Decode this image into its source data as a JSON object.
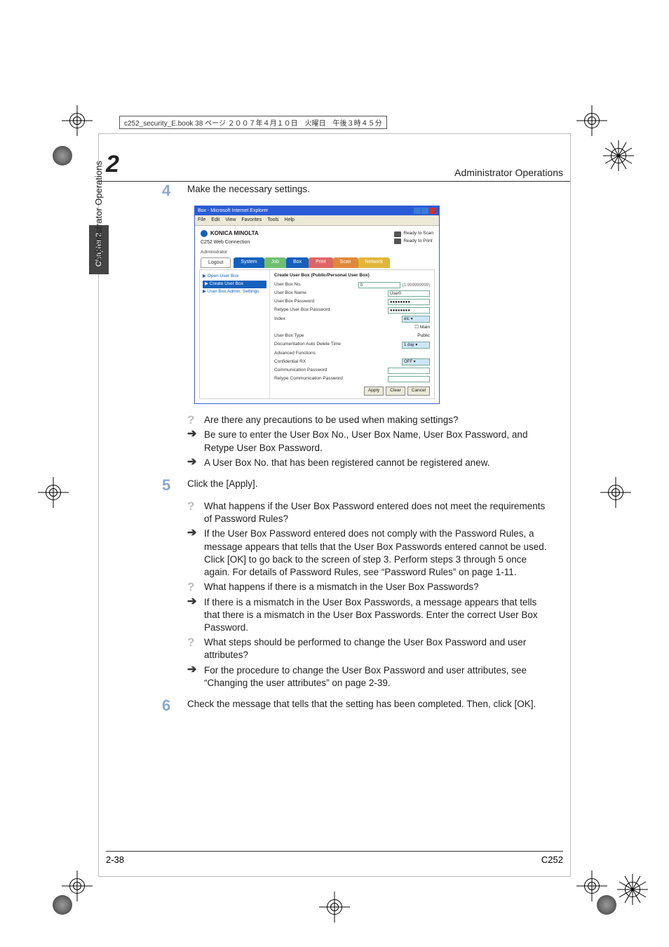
{
  "filetag": "c252_security_E.book  38 ページ  ２００７年４月１０日　火曜日　午後３時４５分",
  "header": {
    "chapter_num": "2",
    "title": "Administrator Operations"
  },
  "side": {
    "tab": "Chapter 2",
    "label": "Administrator Operations"
  },
  "steps": {
    "s4": {
      "num": "4",
      "text": "Make the necessary settings."
    },
    "s5": {
      "num": "5",
      "text": "Click the [Apply]."
    },
    "s6": {
      "num": "6",
      "text": "Check the message that tells that the setting has been completed. Then, click [OK]."
    }
  },
  "qa": {
    "q1": "Are there any precautions to be used when making settings?",
    "a1": "Be sure to enter the User Box No., User Box Name, User Box Password, and Retype User Box Password.",
    "a1b": "A User Box No. that has been registered cannot be registered anew.",
    "q2": "What happens if the User Box Password entered does not meet the requirements of Password Rules?",
    "a2": "If the User Box Password entered does not comply with the Password Rules, a message appears that tells that the User Box Passwords entered cannot be used. Click [OK] to go back to the screen of step 3. Perform steps 3 through 5 once again. For details of Password Rules, see “Password Rules” on page 1-11.",
    "q3": "What happens if there is a mismatch in the User Box Passwords?",
    "a3": "If there is a mismatch in the User Box Passwords, a message appears that tells that there is a mismatch in the User Box Passwords. Enter the correct User Box Password.",
    "q4": "What steps should be performed to change the User Box Password and user attributes?",
    "a4": "For the procedure to change the User Box Password and user attributes, see “Changing the user attributes” on page 2-39."
  },
  "screenshot": {
    "titlebar": "Box - Microsoft Internet Explorer",
    "menus": [
      "File",
      "Edit",
      "View",
      "Favorites",
      "Tools",
      "Help"
    ],
    "brand": "KONICA MINOLTA",
    "product": "C252 Web Connection",
    "ready_scan": "Ready to Scan",
    "ready_print": "Ready to Print",
    "admin": "Administrator",
    "tabs": {
      "logout": "Logout",
      "list": [
        {
          "label": "System",
          "color": "#1560bd"
        },
        {
          "label": "Job",
          "color": "#6fbf6f"
        },
        {
          "label": "Box",
          "color": "#1560bd"
        },
        {
          "label": "Print",
          "color": "#d66"
        },
        {
          "label": "Scan",
          "color": "#e0883a"
        },
        {
          "label": "Network",
          "color": "#e0b63a"
        }
      ]
    },
    "left_menu": {
      "open": "▶ Open User Box",
      "create": "▶ Create User Box",
      "admin_settings": "▶ User Box Admin. Settings"
    },
    "form": {
      "title": "Create User Box (Public/Personal User Box)",
      "rows": [
        {
          "lbl": "User Box No.",
          "val": "0",
          "hint": "(1-999999999)"
        },
        {
          "lbl": "User Box Name",
          "val": "User0"
        },
        {
          "lbl": "User Box Password",
          "val": "●●●●●●●●"
        },
        {
          "lbl": "Retype User Box Password",
          "val": "●●●●●●●●"
        },
        {
          "lbl": "Index",
          "sel": "etc"
        },
        {
          "lbl": "",
          "check": "Main"
        },
        {
          "lbl": "User Box Type",
          "plain": "Public"
        },
        {
          "lbl": "Documentation Auto Delete Time",
          "sel": "1 day"
        },
        {
          "lbl": "Advanced Functions",
          "plain": ""
        },
        {
          "lbl": "Confidential RX",
          "sel": "OFF"
        },
        {
          "lbl": "Communication Password",
          "inp": ""
        },
        {
          "lbl": "Retype Communication Password",
          "inp": ""
        }
      ],
      "buttons": [
        "Apply",
        "Clear",
        "Cancel"
      ]
    }
  },
  "footer": {
    "page": "2-38",
    "model": "C252"
  },
  "colors": {
    "step_num": "#8aa8c8",
    "q_mark": "#bcbcbc",
    "tab_blue": "#1560bd"
  }
}
